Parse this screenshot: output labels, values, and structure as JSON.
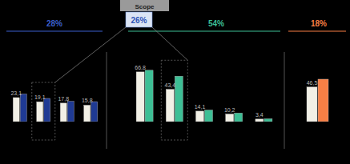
{
  "chart_data": [
    {
      "type": "bar",
      "title": "28%",
      "color": "#3a5fcd",
      "categories": [
        null,
        null,
        null,
        null
      ],
      "series": [
        {
          "color": "#f2f0e6",
          "values": [
            23.1,
            19.1,
            17.8,
            15.8
          ],
          "value_labels": [
            "23,1",
            "19,1",
            "17,8",
            "15,8"
          ],
          "data_labels": true
        },
        {
          "color": "#1f3a93",
          "values": [
            26.5,
            22.3,
            19.5,
            19.2
          ]
        }
      ],
      "ylim": [
        0,
        40
      ],
      "grid": false,
      "tick_labels": false
    },
    {
      "type": "bar",
      "title": "54%",
      "color": "#3dbf95",
      "annotation": {
        "title": "Scope",
        "text": "26%"
      },
      "categories": [
        null,
        null,
        null,
        null,
        null
      ],
      "series": [
        {
          "color": "#f2f0e6",
          "values": [
            66.8,
            43.4,
            14.1,
            10.2,
            3.4
          ],
          "value_labels": [
            "66,8",
            "43,4",
            "14,1",
            "10,2",
            "3,4"
          ],
          "data_labels": true
        },
        {
          "color": "#3dbf95",
          "values": [
            69,
            61,
            15.5,
            11.5,
            3.8
          ]
        }
      ],
      "ylim": [
        0,
        80
      ],
      "grid": false,
      "tick_labels": false
    },
    {
      "type": "bar",
      "title": "18%",
      "color": "#f77f45",
      "categories": [
        null
      ],
      "series": [
        {
          "color": "#f2f0e6",
          "values": [
            46.5
          ],
          "value_labels": [
            "46,5"
          ],
          "data_labels": true
        },
        {
          "color": "#f77f45",
          "values": [
            57
          ]
        }
      ],
      "ylim": [
        0,
        80
      ],
      "grid": false,
      "tick_labels": false
    }
  ]
}
